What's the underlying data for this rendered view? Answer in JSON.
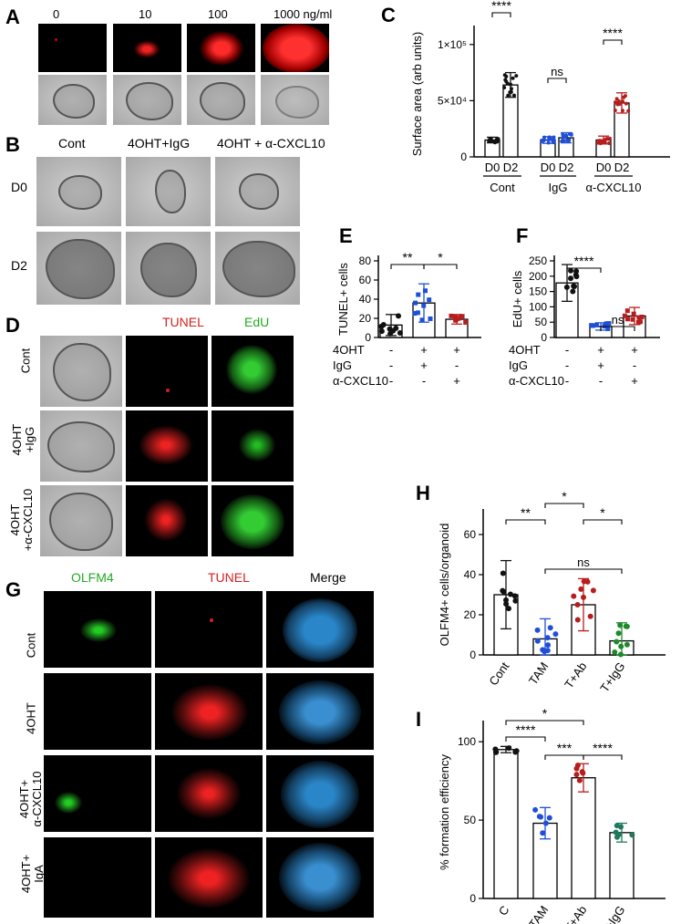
{
  "panel_letters": [
    "A",
    "B",
    "C",
    "D",
    "E",
    "F",
    "G",
    "H",
    "I"
  ],
  "panelA": {
    "doses": [
      "0",
      "10",
      "100",
      "1000 ng/ml"
    ]
  },
  "panelB": {
    "columns": [
      "Cont",
      "4OHT+IgG",
      "4OHT + α-CXCL10"
    ],
    "rows": [
      "D0",
      "D2"
    ]
  },
  "panelD": {
    "columns": [
      "TUNEL",
      "EdU"
    ],
    "rows": [
      "Cont",
      "4OHT\n+IgG",
      "4OHT\n+α-CXCL10"
    ],
    "colors": {
      "tunel": "#d62020",
      "edu": "#22aa22"
    }
  },
  "panelG": {
    "columns": [
      "OLFM4",
      "TUNEL",
      "Merge"
    ],
    "rows": [
      "Cont",
      "4OHT",
      "4OHT+\nα-CXCL10",
      "4OHT+\nIgA"
    ]
  },
  "colors": {
    "black": "#111111",
    "blue": "#1f4fd8",
    "red": "#b81c1c",
    "green": "#1d8a2a",
    "teal": "#1f7a5a"
  },
  "chart_data": [
    {
      "id": "C",
      "type": "bar",
      "ylabel": "Surface area (arb units)",
      "ytick_labels": [
        "0",
        "5×10⁴",
        "1×10⁵"
      ],
      "yticks": [
        0,
        50000,
        100000
      ],
      "ylim": [
        0,
        112000
      ],
      "categories": [
        "D0",
        "D2",
        "D0",
        "D2",
        "D0",
        "D2"
      ],
      "groups": [
        "Cont",
        "IgG",
        "α-CXCL10"
      ],
      "values": [
        15000,
        64000,
        15000,
        17000,
        15000,
        48000
      ],
      "errors": [
        2500,
        11000,
        3000,
        4500,
        3500,
        9000
      ],
      "colors": [
        "#111111",
        "#111111",
        "#1f4fd8",
        "#1f4fd8",
        "#b81c1c",
        "#b81c1c"
      ],
      "significance": [
        {
          "label": "****",
          "from": 0,
          "to": 1
        },
        {
          "label": "ns",
          "from": 2,
          "to": 3
        },
        {
          "label": "****",
          "from": 4,
          "to": 5
        }
      ]
    },
    {
      "id": "E",
      "type": "bar",
      "ylabel": "TUNEL+ cells",
      "yticks": [
        0,
        20,
        40,
        60,
        80
      ],
      "ylim": [
        0,
        80
      ],
      "values": [
        13,
        36,
        19
      ],
      "errors": [
        11,
        20,
        5
      ],
      "colors": [
        "#111111",
        "#1f4fd8",
        "#b81c1c"
      ],
      "table": {
        "row_labels": [
          "4OHT",
          "IgG",
          "α-CXCL10"
        ],
        "cells": [
          [
            "-",
            "+",
            "+"
          ],
          [
            "-",
            "+",
            "-"
          ],
          [
            "-",
            "-",
            "+"
          ]
        ]
      },
      "significance": [
        {
          "label": "**",
          "from": 0,
          "to": 1
        },
        {
          "label": "*",
          "from": 1,
          "to": 2
        }
      ]
    },
    {
      "id": "F",
      "type": "bar",
      "ylabel": "EdU+ cells",
      "yticks": [
        0,
        50,
        100,
        150,
        200,
        250
      ],
      "ylim": [
        0,
        250
      ],
      "values": [
        178,
        36,
        70
      ],
      "errors": [
        60,
        12,
        28
      ],
      "colors": [
        "#111111",
        "#1f4fd8",
        "#b81c1c"
      ],
      "table": {
        "row_labels": [
          "4OHT",
          "IgG",
          "α-CXCL10"
        ],
        "cells": [
          [
            "-",
            "+",
            "+"
          ],
          [
            "-",
            "+",
            "-"
          ],
          [
            "-",
            "-",
            "+"
          ]
        ]
      },
      "significance": [
        {
          "label": "****",
          "from": 0,
          "to": 1
        },
        {
          "label": "ns",
          "from": 1,
          "to": 2
        }
      ]
    },
    {
      "id": "H",
      "type": "bar",
      "ylabel": "OLFM4+ cells/organoid",
      "yticks": [
        0,
        20,
        40,
        60
      ],
      "ylim": [
        0,
        70
      ],
      "categories": [
        "Cont",
        "TAM",
        "T+Ab",
        "T+IgG"
      ],
      "values": [
        30,
        8,
        25,
        7
      ],
      "errors": [
        17,
        10,
        13,
        9
      ],
      "colors": [
        "#111111",
        "#1f4fd8",
        "#b81c1c",
        "#1d8a2a"
      ],
      "significance": [
        {
          "label": "**",
          "from": 0,
          "to": 1
        },
        {
          "label": "*",
          "from": 1,
          "to": 2
        },
        {
          "label": "*",
          "from": 2,
          "to": 3
        },
        {
          "label": "ns",
          "from": 1,
          "to": 3
        }
      ]
    },
    {
      "id": "I",
      "type": "bar",
      "ylabel": "% formation efficiency",
      "yticks": [
        0,
        50,
        100
      ],
      "ylim": [
        0,
        110
      ],
      "categories": [
        "C",
        "TAM",
        "T+Ab",
        "T+IgG"
      ],
      "values": [
        95,
        48,
        77,
        42
      ],
      "errors": [
        2,
        10,
        9,
        6
      ],
      "colors": [
        "#111111",
        "#1f4fd8",
        "#b81c1c",
        "#1f7a5a"
      ],
      "significance": [
        {
          "label": "****",
          "from": 0,
          "to": 1
        },
        {
          "label": "*",
          "from": 0,
          "to": 2
        },
        {
          "label": "***",
          "from": 1,
          "to": 2
        },
        {
          "label": "****",
          "from": 2,
          "to": 3
        }
      ]
    }
  ]
}
